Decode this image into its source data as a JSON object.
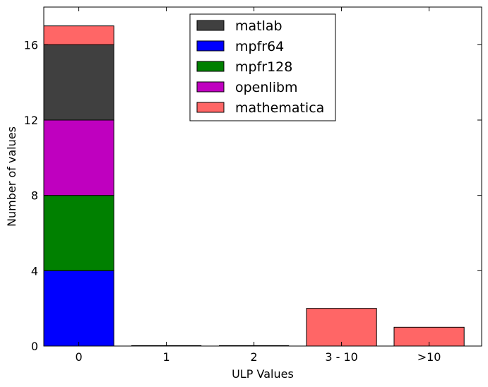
{
  "chart_data": {
    "type": "bar",
    "stacked": true,
    "xlabel": "ULP Values",
    "ylabel": "Number of values",
    "categories": [
      "0",
      "1",
      "2",
      "3 - 10",
      ">10"
    ],
    "ylim": [
      0,
      18
    ],
    "yticks": [
      "0",
      "4",
      "8",
      "12",
      "16"
    ],
    "ytick_values": [
      0,
      4,
      8,
      12,
      16
    ],
    "legend_position": "top-center",
    "grid": false,
    "series": [
      {
        "name": "matlab",
        "color": "#404040",
        "values": [
          4,
          0,
          0,
          0,
          0
        ]
      },
      {
        "name": "mpfr64",
        "color": "#0000ff",
        "values": [
          4,
          0,
          0,
          0,
          0
        ]
      },
      {
        "name": "mpfr128",
        "color": "#008000",
        "values": [
          4,
          0,
          0,
          0,
          0
        ]
      },
      {
        "name": "openlibm",
        "color": "#bf00bf",
        "values": [
          4,
          0,
          0,
          0,
          0
        ]
      },
      {
        "name": "mathematica",
        "color": "#ff6666",
        "values": [
          1,
          0,
          0,
          2,
          1
        ]
      }
    ],
    "stack_order": [
      "mpfr64",
      "mpfr128",
      "openlibm",
      "matlab",
      "mathematica"
    ]
  }
}
